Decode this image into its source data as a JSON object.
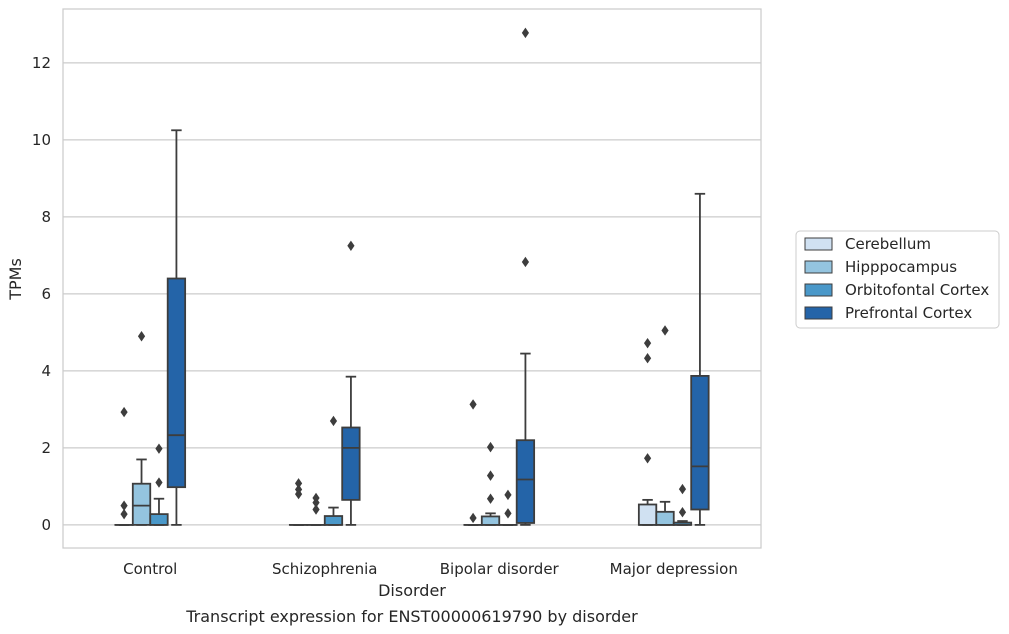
{
  "chart_data": {
    "type": "box",
    "caption": "Transcript expression for ENST00000619790 by disorder",
    "xlabel": "Disorder",
    "ylabel": "TPMs",
    "ylim": [
      -0.6,
      13.4
    ],
    "yticks": [
      0,
      2,
      4,
      6,
      8,
      10,
      12
    ],
    "grid": "horizontal",
    "legend_position": "right",
    "categories": [
      "Control",
      "Schizophrenia",
      "Bipolar disorder",
      "Major depression"
    ],
    "series": [
      {
        "name": "Cerebellum",
        "color": "#d0e1f2",
        "boxes": [
          {
            "q1": 0,
            "median": 0,
            "q3": 0,
            "whisker_low": 0,
            "whisker_high": 0,
            "outliers": [
              0.28,
              0.5,
              2.93
            ]
          },
          {
            "q1": 0,
            "median": 0,
            "q3": 0,
            "whisker_low": 0,
            "whisker_high": 0,
            "outliers": [
              0.8,
              0.92,
              1.08
            ]
          },
          {
            "q1": 0,
            "median": 0,
            "q3": 0,
            "whisker_low": 0,
            "whisker_high": 0,
            "outliers": [
              0.18,
              3.13
            ]
          },
          {
            "q1": 0,
            "median": 0,
            "q3": 0.53,
            "whisker_low": 0,
            "whisker_high": 0.65,
            "outliers": [
              1.73,
              4.33,
              4.72
            ]
          }
        ]
      },
      {
        "name": "Hipppocampus",
        "color": "#94c4df",
        "boxes": [
          {
            "q1": 0,
            "median": 0.5,
            "q3": 1.07,
            "whisker_low": 0,
            "whisker_high": 1.7,
            "outliers": [
              4.9
            ]
          },
          {
            "q1": 0,
            "median": 0,
            "q3": 0,
            "whisker_low": 0,
            "whisker_high": 0,
            "outliers": [
              0.4,
              0.58,
              0.7
            ]
          },
          {
            "q1": 0,
            "median": 0,
            "q3": 0.22,
            "whisker_low": 0,
            "whisker_high": 0.3,
            "outliers": [
              0.68,
              1.28,
              2.02
            ]
          },
          {
            "q1": 0,
            "median": 0,
            "q3": 0.34,
            "whisker_low": 0,
            "whisker_high": 0.6,
            "outliers": [
              5.05
            ]
          }
        ]
      },
      {
        "name": "Orbitofontal Cortex",
        "color": "#4a98c9",
        "boxes": [
          {
            "q1": 0,
            "median": 0,
            "q3": 0.28,
            "whisker_low": 0,
            "whisker_high": 0.68,
            "outliers": [
              1.1,
              1.98
            ]
          },
          {
            "q1": 0,
            "median": 0,
            "q3": 0.23,
            "whisker_low": 0,
            "whisker_high": 0.45,
            "outliers": [
              2.7
            ]
          },
          {
            "q1": 0,
            "median": 0,
            "q3": 0,
            "whisker_low": 0,
            "whisker_high": 0,
            "outliers": [
              0.3,
              0.78
            ]
          },
          {
            "q1": 0,
            "median": 0,
            "q3": 0.06,
            "whisker_low": 0,
            "whisker_high": 0.1,
            "outliers": [
              0.33,
              0.93
            ]
          }
        ]
      },
      {
        "name": "Prefrontal Cortex",
        "color": "#2464a8",
        "boxes": [
          {
            "q1": 0.98,
            "median": 2.33,
            "q3": 6.4,
            "whisker_low": 0,
            "whisker_high": 10.25,
            "outliers": []
          },
          {
            "q1": 0.65,
            "median": 2.0,
            "q3": 2.53,
            "whisker_low": 0,
            "whisker_high": 3.85,
            "outliers": [
              7.25
            ]
          },
          {
            "q1": 0.05,
            "median": 1.18,
            "q3": 2.2,
            "whisker_low": 0,
            "whisker_high": 4.45,
            "outliers": [
              6.83,
              12.78
            ]
          },
          {
            "q1": 0.4,
            "median": 1.52,
            "q3": 3.87,
            "whisker_low": 0,
            "whisker_high": 8.6,
            "outliers": []
          }
        ]
      }
    ]
  }
}
